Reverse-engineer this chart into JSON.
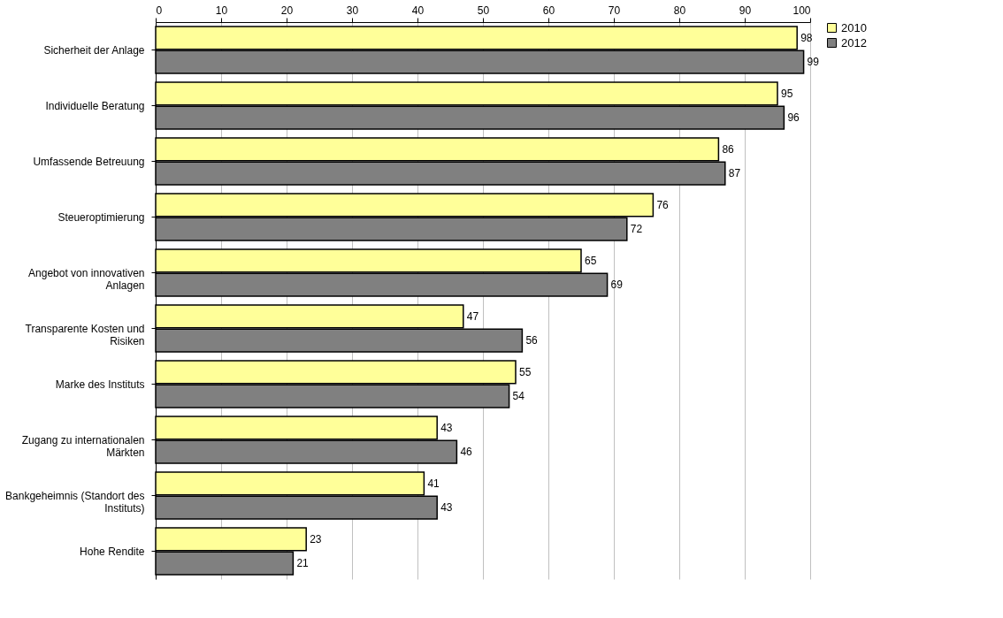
{
  "chart_data": {
    "type": "bar",
    "orientation": "horizontal",
    "categories": [
      "Sicherheit der Anlage",
      "Individuelle Beratung",
      "Umfassende Betreuung",
      "Steueroptimierung",
      "Angebot von innovativen Anlagen",
      "Transparente Kosten und Risiken",
      "Marke des Instituts",
      "Zugang zu internationalen Märkten",
      "Bankgeheimnis (Standort des Instituts)",
      "Hohe Rendite"
    ],
    "series": [
      {
        "name": "2010",
        "color": "#ffff99",
        "values": [
          98,
          95,
          86,
          76,
          65,
          47,
          55,
          43,
          41,
          23
        ]
      },
      {
        "name": "2012",
        "color": "#808080",
        "values": [
          99,
          96,
          87,
          72,
          69,
          56,
          54,
          46,
          43,
          21
        ]
      }
    ],
    "xlim": [
      0,
      100
    ],
    "xticks": [
      0,
      10,
      20,
      30,
      40,
      50,
      60,
      70,
      80,
      90,
      100
    ],
    "grid": "x",
    "legend": "right",
    "data_labels": true
  }
}
